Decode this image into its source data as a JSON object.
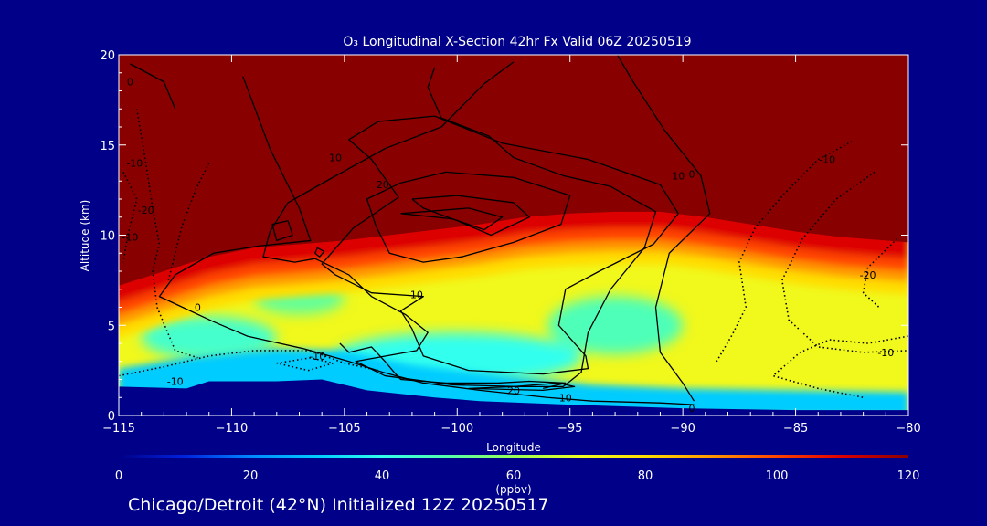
{
  "chart_data": {
    "type": "heatmap",
    "title": "O₃ Longitudinal X-Section 42hr  Fx Valid 06Z 20250519",
    "xlabel": "Longitude",
    "ylabel": "Altitude (km)",
    "xlim": [
      -115,
      -80
    ],
    "ylim": [
      0,
      20
    ],
    "xticks": [
      -115,
      -110,
      -105,
      -100,
      -95,
      -90,
      -85,
      -80
    ],
    "xtick_labels": [
      "−115",
      "−110",
      "−105",
      "−100",
      "−95",
      "−90",
      "−85",
      "−80"
    ],
    "yticks": [
      0,
      5,
      10,
      15,
      20
    ],
    "colorbar": {
      "min": 0,
      "max": 120,
      "ticks": [
        0,
        20,
        40,
        60,
        80,
        100,
        120
      ],
      "label": "(ppbv)",
      "colors": [
        "#000088",
        "#0022dd",
        "#0088ff",
        "#00ccff",
        "#33ffee",
        "#55ffaa",
        "#99ff55",
        "#eeff22",
        "#ffdd00",
        "#ff9900",
        "#ff4400",
        "#dd0000",
        "#880000"
      ]
    },
    "surface_km": [
      [
        -115,
        1.6
      ],
      [
        -112,
        1.5
      ],
      [
        -111,
        1.9
      ],
      [
        -108,
        1.9
      ],
      [
        -106,
        2.0
      ],
      [
        -105,
        1.7
      ],
      [
        -104,
        1.4
      ],
      [
        -101,
        1.0
      ],
      [
        -99,
        0.8
      ],
      [
        -95,
        0.6
      ],
      [
        -90,
        0.4
      ],
      [
        -85,
        0.3
      ],
      [
        -80,
        0.3
      ]
    ],
    "tropopause_km": [
      [
        -115,
        7.2
      ],
      [
        -113,
        8.0
      ],
      [
        -111,
        8.8
      ],
      [
        -109,
        9.3
      ],
      [
        -107,
        9.5
      ],
      [
        -105,
        9.7
      ],
      [
        -103,
        10.0
      ],
      [
        -101,
        10.3
      ],
      [
        -99,
        10.6
      ],
      [
        -97,
        11.0
      ],
      [
        -95,
        11.2
      ],
      [
        -93,
        11.3
      ],
      [
        -91,
        11.3
      ],
      [
        -89,
        11.0
      ],
      [
        -87,
        10.6
      ],
      [
        -85,
        10.2
      ],
      [
        -83,
        9.9
      ],
      [
        -81,
        9.7
      ],
      [
        -80,
        9.6
      ]
    ],
    "ozone_bands": [
      {
        "value": 110,
        "offset_km": -0.9
      },
      {
        "value": 100,
        "offset_km": -1.6
      },
      {
        "value": 90,
        "offset_km": -2.2
      },
      {
        "value": 80,
        "offset_km": -2.9
      }
    ],
    "low_ozone_regions": [
      {
        "value": 40,
        "center": [
          -100,
          3.2
        ],
        "rx": 5.5,
        "ry": 1.4
      },
      {
        "value": 48,
        "center": [
          -93,
          5.0
        ],
        "rx": 3.0,
        "ry": 1.6
      },
      {
        "value": 45,
        "center": [
          -111,
          4.3
        ],
        "rx": 3.0,
        "ry": 1.2
      },
      {
        "value": 52,
        "center": [
          -107,
          6.5
        ],
        "rx": 2.0,
        "ry": 0.9
      }
    ],
    "contours": [
      {
        "level": "0",
        "style": "solid",
        "points": [
          [
            -112.5,
            17.0
          ],
          [
            -113,
            18.5
          ],
          [
            -114.5,
            19.5
          ]
        ]
      },
      {
        "level": "0",
        "style": "solid",
        "points": [
          [
            -109.5,
            18.8
          ],
          [
            -108.3,
            14.8
          ],
          [
            -107,
            11.5
          ],
          [
            -106.5,
            9.7
          ],
          [
            -108.8,
            9.4
          ],
          [
            -110.8,
            9.0
          ],
          [
            -112.5,
            7.8
          ],
          [
            -113.2,
            6.6
          ],
          [
            -112,
            5.9
          ],
          [
            -110.8,
            5.2
          ],
          [
            -109.3,
            4.4
          ],
          [
            -106.8,
            3.7
          ],
          [
            -104.8,
            3.0
          ],
          [
            -103.3,
            2.4
          ],
          [
            -101.5,
            1.8
          ],
          [
            -99,
            1.4
          ],
          [
            -96,
            1.0
          ],
          [
            -94,
            0.8
          ],
          [
            -91,
            0.7
          ],
          [
            -89.5,
            0.6
          ]
        ]
      },
      {
        "level": "0",
        "style": "solid",
        "points": [
          [
            -97.5,
            19.6
          ],
          [
            -98.8,
            18.4
          ],
          [
            -100.7,
            16.0
          ],
          [
            -103.2,
            14.8
          ],
          [
            -105.8,
            13.0
          ],
          [
            -107.5,
            11.8
          ],
          [
            -108.3,
            10.2
          ],
          [
            -108.6,
            8.8
          ],
          [
            -107.2,
            8.5
          ],
          [
            -106.3,
            8.7
          ],
          [
            -104.8,
            7.8
          ],
          [
            -103.8,
            6.6
          ],
          [
            -102.3,
            5.6
          ],
          [
            -101.3,
            4.6
          ],
          [
            -101.8,
            3.6
          ],
          [
            -104.5,
            3.0
          ],
          [
            -103.2,
            2.2
          ],
          [
            -100.2,
            1.7
          ],
          [
            -97.2,
            1.6
          ],
          [
            -95.3,
            1.6
          ],
          [
            -94.5,
            2.4
          ],
          [
            -94.2,
            4.6
          ],
          [
            -93.2,
            7.0
          ],
          [
            -91.7,
            9.3
          ],
          [
            -91.2,
            11.3
          ],
          [
            -93.2,
            12.7
          ],
          [
            -95.3,
            13.3
          ],
          [
            -97.5,
            14.3
          ],
          [
            -98.6,
            15.5
          ],
          [
            -100.7,
            16.5
          ],
          [
            -101.3,
            18.2
          ],
          [
            -101,
            19.3
          ]
        ]
      },
      {
        "level": "10",
        "style": "solid",
        "points": [
          [
            -101,
            16.6
          ],
          [
            -98,
            15.1
          ],
          [
            -94.2,
            14.2
          ],
          [
            -91,
            12.8
          ],
          [
            -90.2,
            11.2
          ],
          [
            -91.3,
            9.5
          ],
          [
            -93.7,
            8.0
          ],
          [
            -95.2,
            7.0
          ],
          [
            -95.5,
            5.0
          ],
          [
            -94.3,
            3.3
          ],
          [
            -94.2,
            2.6
          ],
          [
            -96.2,
            2.3
          ],
          [
            -99.5,
            2.5
          ],
          [
            -101.5,
            3.3
          ],
          [
            -102,
            4.8
          ],
          [
            -102.5,
            5.8
          ],
          [
            -101.5,
            6.6
          ],
          [
            -103.8,
            6.8
          ],
          [
            -105.4,
            7.8
          ],
          [
            -106,
            8.4
          ],
          [
            -104.6,
            10.4
          ],
          [
            -102.6,
            12.1
          ],
          [
            -103.8,
            14.2
          ],
          [
            -104.8,
            15.3
          ],
          [
            -103.5,
            16.3
          ],
          [
            -101,
            16.6
          ]
        ]
      },
      {
        "level": "10",
        "style": "solid",
        "points": [
          [
            -93,
            20.2
          ],
          [
            -92.2,
            18.5
          ],
          [
            -90.8,
            15.8
          ],
          [
            -89.2,
            13.3
          ],
          [
            -88.8,
            11.2
          ],
          [
            -90.6,
            9.0
          ],
          [
            -91.2,
            6.0
          ],
          [
            -91,
            3.5
          ],
          [
            -90,
            1.8
          ],
          [
            -89.5,
            0.8
          ]
        ]
      },
      {
        "level": "20",
        "style": "solid",
        "points": [
          [
            -102.5,
            12.9
          ],
          [
            -100.5,
            13.5
          ],
          [
            -97.5,
            13.2
          ],
          [
            -95,
            12.2
          ],
          [
            -95.4,
            10.6
          ],
          [
            -97.5,
            9.6
          ],
          [
            -99.8,
            8.8
          ],
          [
            -101.5,
            8.5
          ],
          [
            -103,
            9.0
          ],
          [
            -103.6,
            10.5
          ],
          [
            -104,
            12.0
          ],
          [
            -102.5,
            12.9
          ]
        ]
      },
      {
        "level": "",
        "style": "solid",
        "points": [
          [
            -102,
            12.0
          ],
          [
            -100,
            12.2
          ],
          [
            -97.5,
            11.8
          ],
          [
            -96.8,
            11.0
          ],
          [
            -98.5,
            10.0
          ],
          [
            -100,
            10.8
          ],
          [
            -101.5,
            11.5
          ],
          [
            -102,
            12.0
          ]
        ]
      },
      {
        "level": "",
        "style": "solid",
        "points": [
          [
            -102.5,
            11.2
          ],
          [
            -99.5,
            11.5
          ],
          [
            -98,
            11.0
          ],
          [
            -98.8,
            10.3
          ],
          [
            -100.2,
            10.9
          ],
          [
            -102.5,
            11.2
          ]
        ]
      },
      {
        "level": "",
        "style": "solid",
        "points": [
          [
            -108.2,
            10.6
          ],
          [
            -107.5,
            10.8
          ],
          [
            -107.3,
            10.0
          ],
          [
            -108,
            9.7
          ],
          [
            -108.2,
            10.6
          ]
        ]
      },
      {
        "level": "",
        "style": "solid",
        "points": [
          [
            -106.2,
            9.3
          ],
          [
            -105.9,
            9.1
          ],
          [
            -106.1,
            8.8
          ],
          [
            -106.3,
            9.0
          ],
          [
            -106.2,
            9.3
          ]
        ]
      },
      {
        "level": "10",
        "style": "solid",
        "points": [
          [
            -105.2,
            4.0
          ],
          [
            -104.8,
            3.5
          ],
          [
            -103.8,
            3.8
          ],
          [
            -103.2,
            3.0
          ],
          [
            -102.8,
            2.4
          ],
          [
            -102.5,
            2.0
          ],
          [
            -100.5,
            1.8
          ],
          [
            -98.2,
            1.8
          ],
          [
            -96.8,
            1.9
          ],
          [
            -95.2,
            1.8
          ],
          [
            -96.2,
            1.5
          ]
        ]
      },
      {
        "level": "20",
        "style": "solid",
        "points": [
          [
            -99.5,
            1.5
          ],
          [
            -97.5,
            1.6
          ],
          [
            -95.5,
            1.8
          ],
          [
            -94.8,
            1.6
          ],
          [
            -96.2,
            1.4
          ],
          [
            -99.5,
            1.5
          ]
        ]
      },
      {
        "level": "-10",
        "style": "dotted",
        "points": [
          [
            -114.2,
            17.0
          ],
          [
            -113.8,
            14.0
          ],
          [
            -113.5,
            11.5
          ],
          [
            -113.2,
            9.5
          ],
          [
            -113.5,
            8.0
          ],
          [
            -113.3,
            6.0
          ],
          [
            -112.8,
            4.5
          ],
          [
            -112.5,
            3.6
          ],
          [
            -111.5,
            3.2
          ]
        ]
      },
      {
        "level": "-10",
        "style": "dotted",
        "points": [
          [
            -111,
            14.0
          ],
          [
            -111.6,
            12.5
          ],
          [
            -112.2,
            10.5
          ],
          [
            -112.5,
            9.0
          ],
          [
            -112.8,
            7.5
          ]
        ]
      },
      {
        "level": "-20",
        "style": "dotted",
        "points": [
          [
            -114.8,
            13.5
          ],
          [
            -114.2,
            12.0
          ],
          [
            -114.6,
            10.0
          ],
          [
            -114.8,
            8.5
          ]
        ]
      },
      {
        "level": "-10",
        "style": "dotted",
        "points": [
          [
            -115,
            2.2
          ],
          [
            -113,
            2.7
          ],
          [
            -111,
            3.3
          ],
          [
            -109,
            3.6
          ],
          [
            -106.5,
            3.6
          ],
          [
            -105,
            2.9
          ],
          [
            -103.5,
            2.5
          ]
        ]
      },
      {
        "level": "-10",
        "style": "dotted",
        "points": [
          [
            -108,
            2.9
          ],
          [
            -106.5,
            3.2
          ],
          [
            -105.5,
            2.9
          ],
          [
            -106.6,
            2.5
          ],
          [
            -108,
            2.9
          ]
        ]
      },
      {
        "level": "-10",
        "style": "dotted",
        "points": [
          [
            -82.5,
            15.2
          ],
          [
            -84,
            14.2
          ],
          [
            -85.5,
            12.3
          ],
          [
            -86.8,
            10.4
          ],
          [
            -87.5,
            8.5
          ],
          [
            -87.2,
            6.0
          ],
          [
            -87.8,
            4.5
          ],
          [
            -88.5,
            3.0
          ]
        ]
      },
      {
        "level": "-20",
        "style": "dotted",
        "points": [
          [
            -81.5,
            13.5
          ],
          [
            -83.2,
            12.0
          ],
          [
            -84.7,
            9.8
          ],
          [
            -85.6,
            7.5
          ],
          [
            -85.3,
            5.3
          ],
          [
            -84,
            3.8
          ],
          [
            -82,
            3.5
          ],
          [
            -80,
            3.6
          ]
        ]
      },
      {
        "level": "-20",
        "style": "dotted",
        "points": [
          [
            -80.5,
            9.8
          ],
          [
            -81.8,
            8.2
          ],
          [
            -82,
            6.8
          ],
          [
            -81.3,
            6.0
          ]
        ]
      },
      {
        "level": "-10",
        "style": "dotted",
        "points": [
          [
            -80,
            4.4
          ],
          [
            -81.8,
            4.0
          ],
          [
            -83.5,
            4.2
          ],
          [
            -84.8,
            3.5
          ],
          [
            -86,
            2.2
          ],
          [
            -84,
            1.5
          ],
          [
            -82,
            1.0
          ]
        ]
      }
    ],
    "contour_labels": [
      {
        "text": "0",
        "at": [
          -114.5,
          18.5
        ]
      },
      {
        "text": "0",
        "at": [
          -111.5,
          6.0
        ]
      },
      {
        "text": "10",
        "at": [
          -101.8,
          6.7
        ]
      },
      {
        "text": "10",
        "at": [
          -105.4,
          14.3
        ]
      },
      {
        "text": "10",
        "at": [
          -90.2,
          13.3
        ]
      },
      {
        "text": "20",
        "at": [
          -103.3,
          12.8
        ]
      },
      {
        "text": "0",
        "at": [
          -89.6,
          13.4
        ]
      },
      {
        "text": "10",
        "at": [
          -95.2,
          1.0
        ]
      },
      {
        "text": "20",
        "at": [
          -97.5,
          1.4
        ]
      },
      {
        "text": "-10",
        "at": [
          -106.2,
          3.3
        ]
      },
      {
        "text": "-10",
        "at": [
          -112.5,
          1.9
        ]
      },
      {
        "text": "-10",
        "at": [
          -114.3,
          14.0
        ]
      },
      {
        "text": "-20",
        "at": [
          -113.8,
          11.4
        ]
      },
      {
        "text": "-10",
        "at": [
          -114.5,
          9.9
        ]
      },
      {
        "text": "-10",
        "at": [
          -83.6,
          14.2
        ]
      },
      {
        "text": "-20",
        "at": [
          -81.8,
          7.8
        ]
      },
      {
        "text": "-10",
        "at": [
          -81,
          3.5
        ]
      },
      {
        "text": "0",
        "at": [
          -89.6,
          0.4
        ]
      }
    ]
  },
  "caption": "Chicago/Detroit (42°N) Initialized 12Z 20250517"
}
